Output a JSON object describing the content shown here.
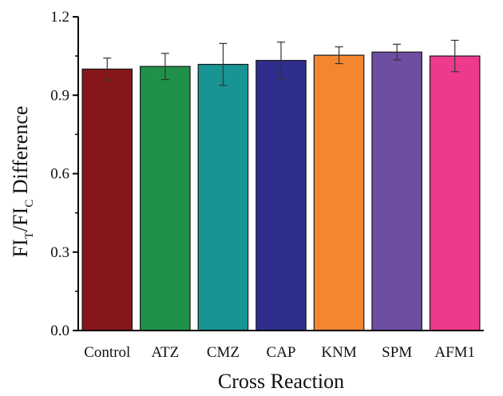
{
  "chart_data": {
    "type": "bar",
    "categories": [
      "Control",
      "ATZ",
      "CMZ",
      "CAP",
      "KNM",
      "SPM",
      "AFM1"
    ],
    "values": [
      1.0,
      1.01,
      1.018,
      1.033,
      1.053,
      1.065,
      1.05
    ],
    "errors": [
      0.042,
      0.05,
      0.08,
      0.07,
      0.032,
      0.03,
      0.06
    ],
    "colors": [
      "#861619",
      "#209149",
      "#189494",
      "#2E2E8C",
      "#F38630",
      "#6C4EA2",
      "#EE3A8C"
    ],
    "xlabel": "Cross Reaction",
    "ylabel": {
      "part1": "FI",
      "sub1": "T",
      "part2": "/FI",
      "sub2": "C",
      "part3": " Difference"
    },
    "ylim": [
      0.0,
      1.2
    ],
    "yticks": [
      "0.0",
      "0.3",
      "0.6",
      "0.9",
      "1.2"
    ],
    "ytick_values": [
      0.0,
      0.3,
      0.6,
      0.9,
      1.2
    ],
    "grid": false,
    "legend": "none"
  }
}
